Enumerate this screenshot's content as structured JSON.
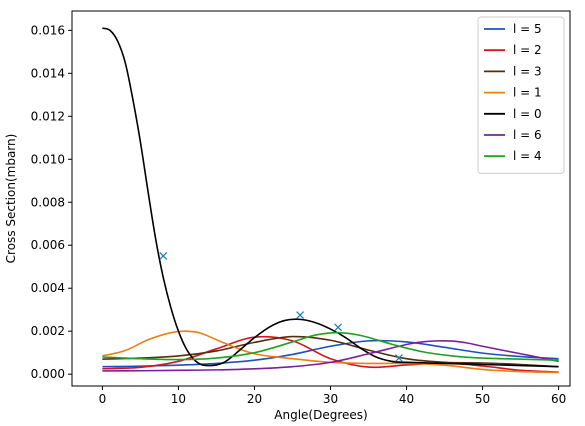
{
  "chart_data": {
    "type": "line",
    "title": "",
    "xlabel": "Angle(Degrees)",
    "ylabel": "Cross Section(mbarn)",
    "xlim": [
      -4,
      61.5
    ],
    "ylim": [
      -0.00055,
      0.0169
    ],
    "xticks": [
      0,
      10,
      20,
      30,
      40,
      50,
      60
    ],
    "xtick_labels": [
      "0",
      "10",
      "20",
      "30",
      "40",
      "50",
      "60"
    ],
    "yticks": [
      0.0,
      0.002,
      0.004,
      0.006,
      0.008,
      0.01,
      0.012,
      0.014,
      0.016
    ],
    "ytick_labels": [
      "0.000",
      "0.002",
      "0.004",
      "0.006",
      "0.008",
      "0.010",
      "0.012",
      "0.014",
      "0.016"
    ],
    "grid": false,
    "legend_position": "top-right",
    "series": [
      {
        "name": "l = 5",
        "color": "#1f4fbf",
        "x": [
          0,
          5,
          10,
          15,
          20,
          25,
          30,
          35,
          40,
          45,
          50,
          55,
          60
        ],
        "y": [
          0.00035,
          0.00037,
          0.00042,
          0.0005,
          0.00065,
          0.00092,
          0.0013,
          0.00155,
          0.0015,
          0.00125,
          0.00098,
          0.00082,
          0.00072
        ]
      },
      {
        "name": "l = 2",
        "color": "#d4141c",
        "x": [
          0,
          5,
          10,
          15,
          20,
          25,
          30,
          35,
          40,
          45,
          50,
          55,
          60
        ],
        "y": [
          0.00025,
          0.00032,
          0.0006,
          0.00118,
          0.00172,
          0.00155,
          0.00072,
          0.00033,
          0.00043,
          0.00052,
          0.00038,
          0.00018,
          0.0001
        ]
      },
      {
        "name": "l = 3",
        "color": "#5a2d08",
        "x": [
          0,
          5,
          10,
          15,
          20,
          25,
          30,
          35,
          40,
          45,
          50,
          55,
          60
        ],
        "y": [
          0.0007,
          0.00075,
          0.00085,
          0.00108,
          0.00148,
          0.00175,
          0.00158,
          0.00112,
          0.00072,
          0.00055,
          0.00052,
          0.00045,
          0.00035
        ]
      },
      {
        "name": "l = 1",
        "color": "#f07d10",
        "x": [
          0,
          3,
          6,
          9,
          11,
          13,
          16,
          20,
          25,
          30,
          35,
          40,
          45,
          50,
          55,
          60
        ],
        "y": [
          0.00085,
          0.0011,
          0.0016,
          0.00193,
          0.002,
          0.0019,
          0.00145,
          0.00095,
          0.00072,
          0.00055,
          0.0005,
          0.0005,
          0.00042,
          0.00022,
          0.00012,
          8e-05
        ]
      },
      {
        "name": "l = 0",
        "color": "#000000",
        "x": [
          0,
          1,
          2,
          3,
          4,
          5,
          6,
          7,
          8,
          9,
          10,
          11,
          12,
          13,
          14,
          15,
          16,
          17,
          18,
          20,
          22,
          24,
          26,
          28,
          30,
          32,
          34,
          36,
          38,
          40,
          45,
          50,
          55,
          60
        ],
        "y": [
          0.0161,
          0.016,
          0.0155,
          0.0145,
          0.0128,
          0.0108,
          0.0085,
          0.0063,
          0.0045,
          0.0031,
          0.002,
          0.0012,
          0.0007,
          0.00045,
          0.0004,
          0.00043,
          0.00055,
          0.0008,
          0.0011,
          0.0017,
          0.0022,
          0.0025,
          0.00255,
          0.0024,
          0.0021,
          0.0017,
          0.0012,
          0.0008,
          0.0006,
          0.00055,
          0.0005,
          0.00045,
          0.0004,
          0.00035
        ]
      },
      {
        "name": "l = 6",
        "color": "#7a1fa2",
        "x": [
          0,
          5,
          10,
          15,
          20,
          25,
          30,
          35,
          40,
          42,
          44,
          46,
          48,
          50,
          55,
          60
        ],
        "y": [
          0.00015,
          0.00016,
          0.00018,
          0.0002,
          0.00025,
          0.00035,
          0.00055,
          0.00095,
          0.00138,
          0.0015,
          0.00155,
          0.00154,
          0.00145,
          0.0013,
          0.00095,
          0.0006
        ]
      },
      {
        "name": "l = 4",
        "color": "#1fa21f",
        "x": [
          0,
          5,
          10,
          15,
          20,
          25,
          28,
          31,
          34,
          38,
          42,
          46,
          50,
          55,
          60
        ],
        "y": [
          0.0008,
          0.00072,
          0.00068,
          0.00075,
          0.001,
          0.0015,
          0.00182,
          0.00193,
          0.0018,
          0.0014,
          0.00105,
          0.00085,
          0.00075,
          0.0007,
          0.00065
        ]
      }
    ],
    "markers": {
      "symbol": "x",
      "color": "#1f77b4",
      "x": [
        8,
        26,
        31,
        39
      ],
      "y": [
        0.0055,
        0.00275,
        0.00218,
        0.00075
      ]
    }
  }
}
